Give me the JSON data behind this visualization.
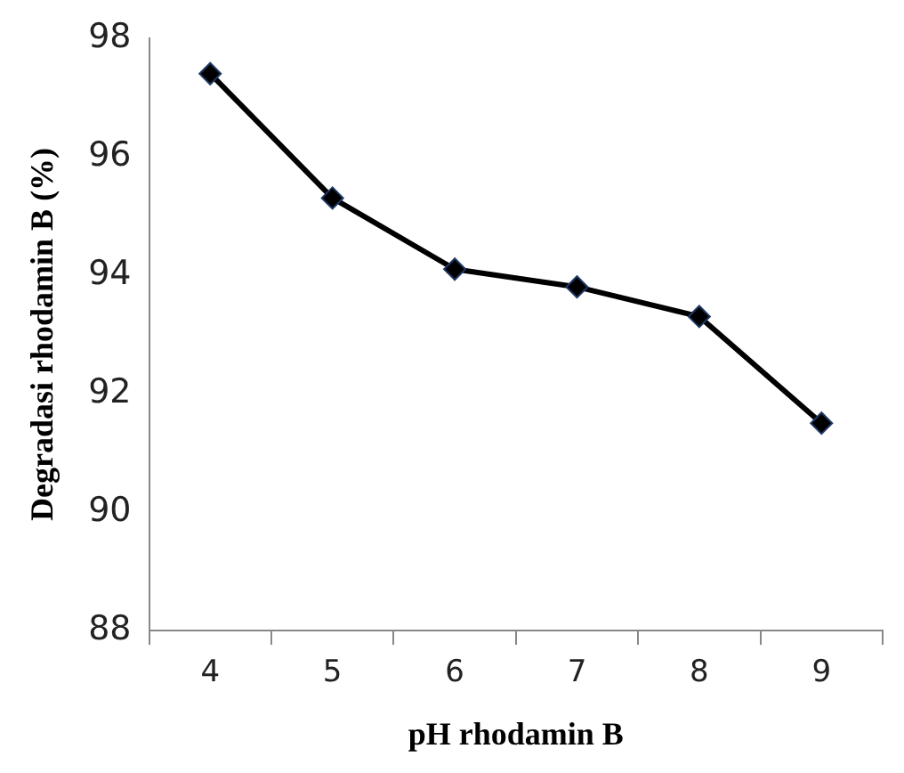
{
  "chart_data": {
    "type": "line",
    "xlabel": "pH rhodamin B",
    "ylabel": "Degradasi rhodamin B (%)",
    "categories": [
      "4",
      "5",
      "6",
      "7",
      "8",
      "9"
    ],
    "series": [
      {
        "color": "#000000",
        "values": [
          97.4,
          95.3,
          94.1,
          93.8,
          93.3,
          91.5
        ]
      }
    ],
    "ylim": [
      88,
      98
    ],
    "yticks": [
      88,
      90,
      92,
      94,
      96,
      98
    ],
    "grid": false,
    "legend": false,
    "marker": "diamond",
    "line_style": "solid"
  }
}
